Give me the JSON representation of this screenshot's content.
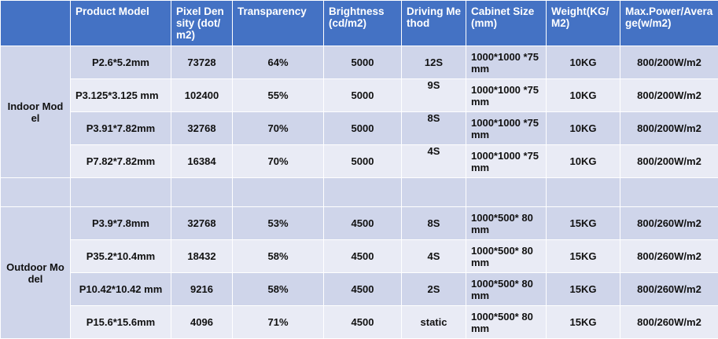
{
  "headers": [
    "",
    "Product Model",
    "Pixel Density (dot/m2)",
    "Transparency",
    "Brightness (cd/m2)",
    "Driving Method",
    "Cabinet Size(mm)",
    "Weight(KG/M2)",
    "Max.Power/Average(w/m2)"
  ],
  "groups": {
    "indoor": "Indoor Model",
    "outdoor": "Outdoor Model"
  },
  "indoor_rows": [
    {
      "model": "P2.6*5.2mm",
      "density": "73728",
      "transparency": "64%",
      "brightness": "5000",
      "driving": "12S",
      "cabinet": "1000*1000 *75mm",
      "weight": "10KG",
      "power": "800/200W/m2"
    },
    {
      "model": "P3.125*3.125 mm",
      "density": "102400",
      "transparency": "55%",
      "brightness": "5000",
      "driving": "9S",
      "cabinet": "1000*1000 *75mm",
      "weight": "10KG",
      "power": "800/200W/m2"
    },
    {
      "model": "P3.91*7.82mm",
      "density": "32768",
      "transparency": "70%",
      "brightness": "5000",
      "driving": "8S",
      "cabinet": "1000*1000 *75mm",
      "weight": "10KG",
      "power": "800/200W/m2"
    },
    {
      "model": "P7.82*7.82mm",
      "density": "16384",
      "transparency": "70%",
      "brightness": "5000",
      "driving": "4S",
      "cabinet": "1000*1000 *75mm",
      "weight": "10KG",
      "power": "800/200W/m2"
    }
  ],
  "outdoor_rows": [
    {
      "model": "P3.9*7.8mm",
      "density": "32768",
      "transparency": "53%",
      "brightness": "4500",
      "driving": "8S",
      "cabinet": "1000*500* 80mm",
      "weight": "15KG",
      "power": "800/260W/m2"
    },
    {
      "model": "P35.2*10.4mm",
      "density": "18432",
      "transparency": "58%",
      "brightness": "4500",
      "driving": "4S",
      "cabinet": "1000*500* 80mm",
      "weight": "15KG",
      "power": "800/260W/m2"
    },
    {
      "model": "P10.42*10.42 mm",
      "density": "9216",
      "transparency": "58%",
      "brightness": "4500",
      "driving": "2S",
      "cabinet": "1000*500* 80mm",
      "weight": "15KG",
      "power": "800/260W/m2"
    },
    {
      "model": "P15.6*15.6mm",
      "density": "4096",
      "transparency": "71%",
      "brightness": "4500",
      "driving": "static",
      "cabinet": "1000*500* 80mm",
      "weight": "15KG",
      "power": "800/260W/m2"
    }
  ]
}
